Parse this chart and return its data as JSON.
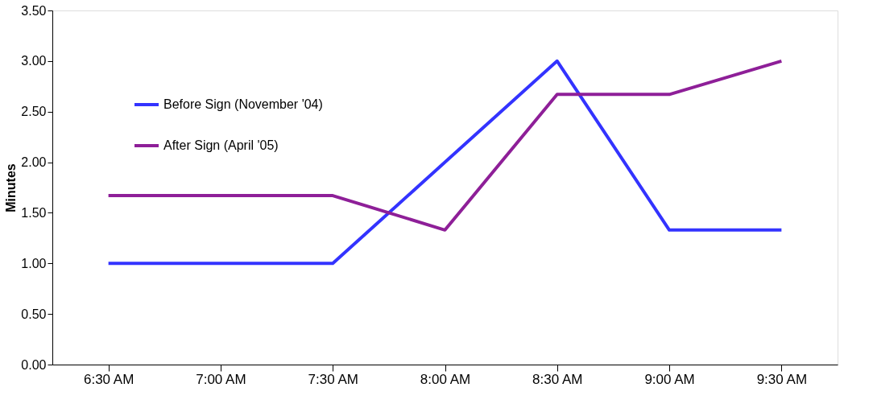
{
  "chart_data": {
    "type": "line",
    "ylabel": "Minutes",
    "categories": [
      "6:30 AM",
      "7:00 AM",
      "7:30 AM",
      "8:00 AM",
      "8:30 AM",
      "9:00 AM",
      "9:30 AM"
    ],
    "series": [
      {
        "name": "Before Sign (November '04)",
        "color": "#3333ff",
        "values": [
          1.0,
          1.0,
          1.0,
          2.0,
          3.0,
          1.33,
          1.33
        ]
      },
      {
        "name": "After Sign (April '05)",
        "color": "#8e1f98",
        "values": [
          1.67,
          1.67,
          1.67,
          1.33,
          2.67,
          2.67,
          3.0
        ]
      }
    ],
    "ylim": [
      0,
      3.5
    ],
    "yticks": [
      {
        "value": 0,
        "label": "0.00"
      },
      {
        "value": 0.5,
        "label": "0.50"
      },
      {
        "value": 1,
        "label": "1.00"
      },
      {
        "value": 1.5,
        "label": "1.50"
      },
      {
        "value": 2,
        "label": "2.00"
      },
      {
        "value": 2.5,
        "label": "2.50"
      },
      {
        "value": 3,
        "label": "3.00"
      },
      {
        "value": 3.5,
        "label": "3.50"
      }
    ],
    "grid": false,
    "legend": "top left",
    "marker": "none",
    "line_style": "solid"
  }
}
